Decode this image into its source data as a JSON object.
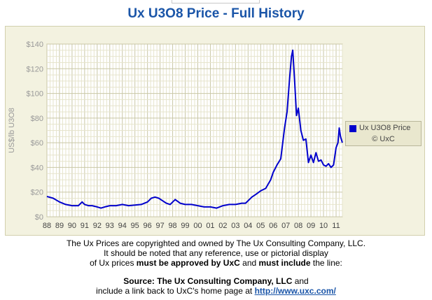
{
  "page": {
    "title": "Ux U3O8 Price - Full History",
    "footer": {
      "line1": "The Ux Prices are copyrighted and owned by The Ux Consulting Company, LLC.",
      "line2": "It should be noted that any reference, use or pictorial display",
      "line3_a": "of Ux prices ",
      "line3_b": "must be approved by UxC",
      "line3_c": " and ",
      "line3_d": "must include",
      "line3_e": " the line:",
      "source_label": "Source: The Ux Consulting Company, LLC",
      "source_tail": " and",
      "line5_a": "include a link back to UxC's home page at ",
      "link_text": "http://www.uxc.com/"
    }
  },
  "chart_data": {
    "type": "line",
    "title": "Ux U3O8 Price - Full History",
    "ylabel": "US$/lb U3O8",
    "xlabel": "",
    "ylim": [
      0,
      140
    ],
    "xlim": [
      1988,
      2011.5
    ],
    "yticks": [
      0,
      20,
      40,
      60,
      80,
      100,
      120,
      140
    ],
    "ytick_labels": [
      "$0",
      "$20",
      "$40",
      "$60",
      "$80",
      "$100",
      "$120",
      "$140"
    ],
    "xticks": [
      1988,
      1989,
      1990,
      1991,
      1992,
      1993,
      1994,
      1995,
      1996,
      1997,
      1998,
      1999,
      2000,
      2001,
      2002,
      2003,
      2004,
      2005,
      2006,
      2007,
      2008,
      2009,
      2010,
      2011
    ],
    "xtick_labels": [
      "88",
      "89",
      "90",
      "91",
      "92",
      "93",
      "94",
      "95",
      "96",
      "97",
      "98",
      "99",
      "00",
      "01",
      "02",
      "03",
      "04",
      "05",
      "06",
      "07",
      "08",
      "09",
      "10",
      "11"
    ],
    "grid": true,
    "legend": {
      "position": "right",
      "copyright": "© UxC"
    },
    "series": [
      {
        "name": "Ux U3O8 Price",
        "color": "#0000cc",
        "x": [
          1988.0,
          1988.5,
          1989.0,
          1989.5,
          1990.0,
          1990.5,
          1990.8,
          1991.0,
          1991.3,
          1991.6,
          1992.0,
          1992.3,
          1992.6,
          1993.0,
          1993.5,
          1994.0,
          1994.5,
          1995.0,
          1995.5,
          1996.0,
          1996.3,
          1996.6,
          1996.9,
          1997.2,
          1997.5,
          1997.8,
          1998.2,
          1998.6,
          1999.0,
          1999.5,
          2000.0,
          2000.5,
          2001.0,
          2001.5,
          2002.0,
          2002.5,
          2003.0,
          2003.5,
          2003.8,
          2004.0,
          2004.3,
          2004.6,
          2005.0,
          2005.4,
          2005.8,
          2006.0,
          2006.3,
          2006.6,
          2006.9,
          2007.1,
          2007.3,
          2007.45,
          2007.55,
          2007.7,
          2007.85,
          2008.0,
          2008.2,
          2008.4,
          2008.6,
          2008.8,
          2009.0,
          2009.2,
          2009.4,
          2009.6,
          2009.8,
          2010.0,
          2010.2,
          2010.4,
          2010.6,
          2010.8,
          2011.0,
          2011.15,
          2011.25,
          2011.35,
          2011.5
        ],
        "values": [
          16.5,
          15,
          12,
          10,
          9,
          9,
          12,
          10,
          9,
          9,
          8,
          7,
          8,
          9,
          9,
          10,
          9,
          9.5,
          10,
          12,
          15,
          16,
          15,
          13,
          11,
          10,
          14,
          11,
          10,
          10,
          9,
          8,
          8,
          7,
          9,
          10,
          10,
          11,
          11,
          13,
          16,
          18,
          21,
          23,
          30,
          36,
          42,
          47,
          72,
          85,
          112,
          130,
          135,
          110,
          82,
          88,
          70,
          62,
          63,
          44,
          50,
          44,
          52,
          45,
          46,
          42,
          41,
          43,
          40,
          42,
          56,
          60,
          72,
          65,
          60
        ]
      }
    ]
  }
}
